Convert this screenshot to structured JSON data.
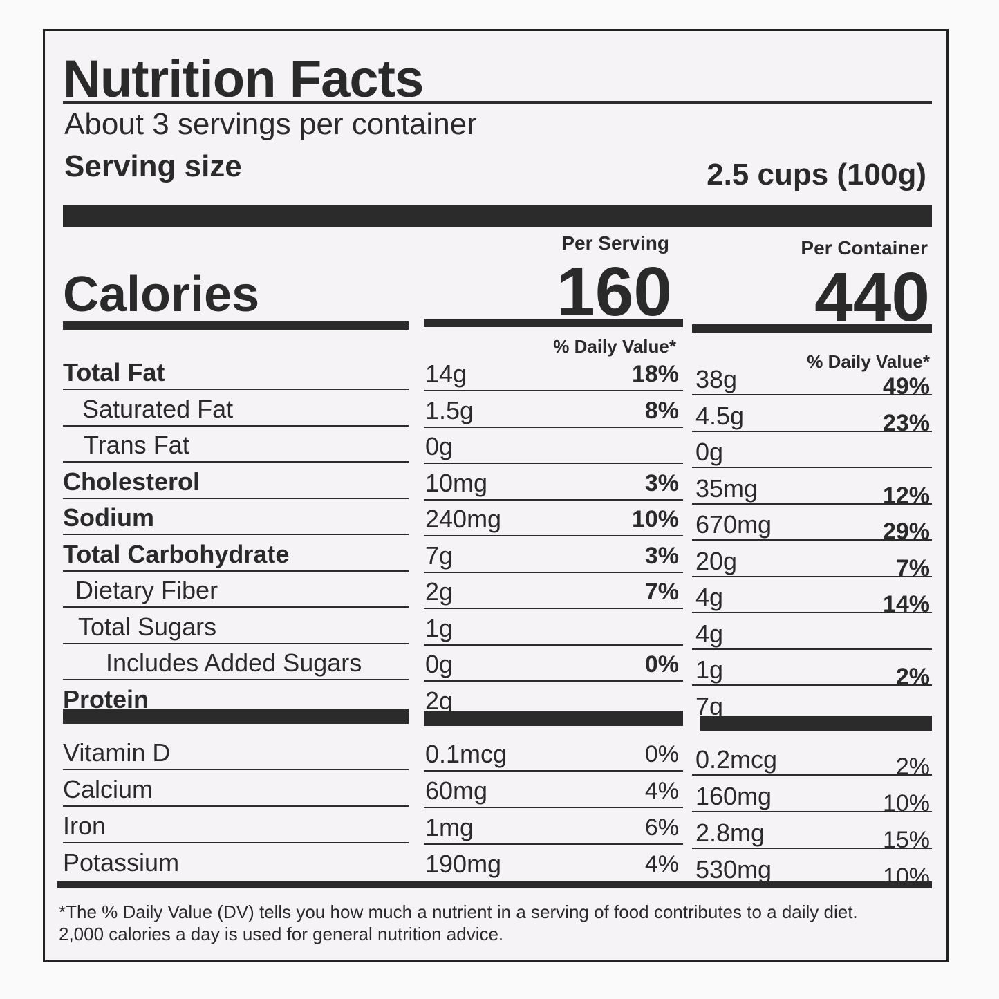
{
  "header": {
    "title": "Nutrition Facts",
    "servings": "About 3 servings per container",
    "serving_size_label": "Serving size",
    "serving_size": "2.5 cups (100g)"
  },
  "calories": {
    "label": "Calories",
    "per_serving_label": "Per Serving",
    "per_serving": "160",
    "per_container_label": "Per Container",
    "per_container": "440",
    "dv_label": "% Daily Value*"
  },
  "nutrients": [
    [
      "Total Fat",
      "14g",
      "18%",
      "38g",
      "49%"
    ],
    [
      "Saturated Fat",
      "1.5g",
      "8%",
      "4.5g",
      "23%"
    ],
    [
      "Trans Fat",
      "0g",
      null,
      "0g",
      null
    ],
    [
      "Cholesterol",
      "10mg",
      "3%",
      "35mg",
      "12%"
    ],
    [
      "Sodium",
      "240mg",
      "10%",
      "670mg",
      "29%"
    ],
    [
      "Total Carbohydrate",
      "7g",
      "3%",
      "20g",
      "7%"
    ],
    [
      "Dietary Fiber",
      "2g",
      "7%",
      "4g",
      "14%"
    ],
    [
      "Total Sugars",
      "1g",
      null,
      "4g",
      null
    ],
    [
      "Includes Added Sugars",
      "0g",
      "0%",
      "1g",
      "2%"
    ],
    [
      "Protein",
      "2g",
      null,
      "7g",
      null
    ]
  ],
  "vitamins": [
    [
      "Vitamin D",
      "0.1mcg",
      "0%",
      "0.2mcg",
      "2%"
    ],
    [
      "Calcium",
      "60mg",
      "4%",
      "160mg",
      "10%"
    ],
    [
      "Iron",
      "1mg",
      "6%",
      "2.8mg",
      "15%"
    ],
    [
      "Potassium",
      "190mg",
      "4%",
      "530mg",
      "10%"
    ]
  ],
  "footnote": "*The % Daily Value (DV) tells you how much a nutrient in a serving of food contributes to a daily diet. 2,000 calories a day is used for general nutrition advice."
}
